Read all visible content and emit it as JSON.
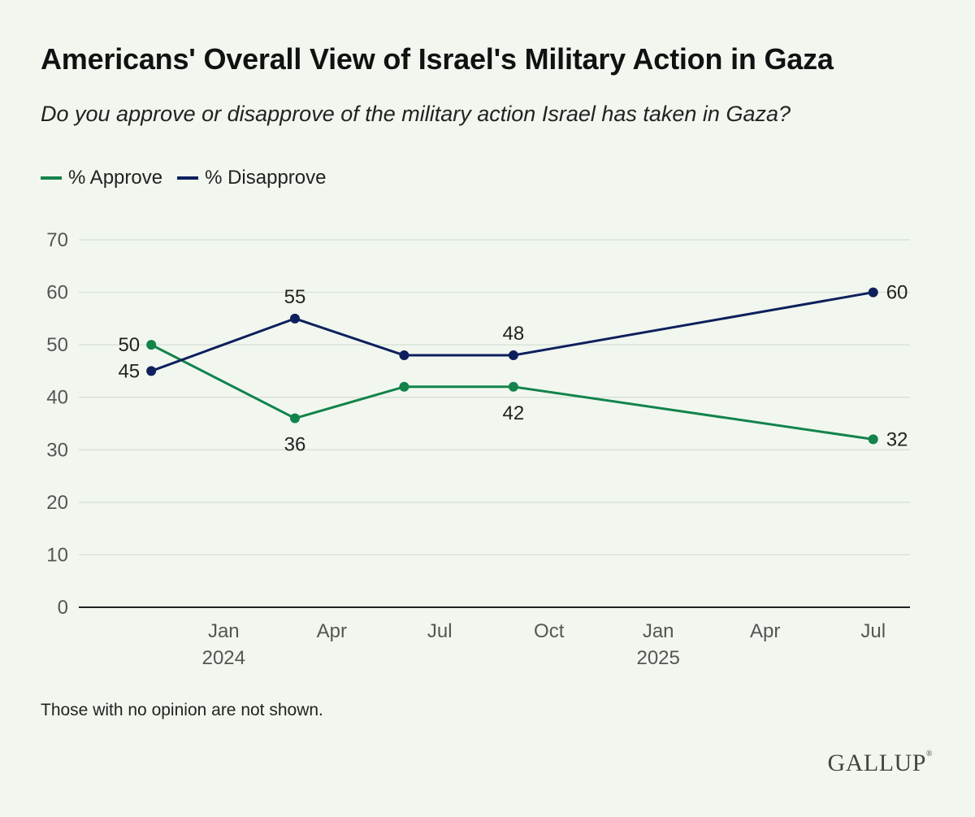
{
  "title": "Americans' Overall View of Israel's Military Action in Gaza",
  "subtitle": "Do you approve or disapprove of the military action Israel has taken in Gaza?",
  "note": "Those with no opinion are not shown.",
  "logo": "GALLUP",
  "chart_data": {
    "type": "line",
    "title": "Americans' Overall View of Israel's Military Action in Gaza",
    "subtitle": "Do you approve or disapprove of the military action Israel has taken in Gaza?",
    "xlabel": "",
    "ylabel": "",
    "ylim": [
      0,
      70
    ],
    "yticks": [
      0,
      10,
      20,
      30,
      40,
      50,
      60,
      70
    ],
    "xlim": [
      "2023-09-01",
      "2025-08-01"
    ],
    "xticks": [
      {
        "date": "2024-01-01",
        "label": "Jan",
        "year": "2024"
      },
      {
        "date": "2024-04-01",
        "label": "Apr",
        "year": ""
      },
      {
        "date": "2024-07-01",
        "label": "Jul",
        "year": ""
      },
      {
        "date": "2024-10-01",
        "label": "Oct",
        "year": ""
      },
      {
        "date": "2025-01-01",
        "label": "Jan",
        "year": "2025"
      },
      {
        "date": "2025-04-01",
        "label": "Apr",
        "year": ""
      },
      {
        "date": "2025-07-01",
        "label": "Jul",
        "year": ""
      }
    ],
    "grid": true,
    "legend_position": "top-left",
    "x": [
      "2023-11-01",
      "2024-03-01",
      "2024-06-01",
      "2024-09-01",
      "2025-07-01"
    ],
    "series": [
      {
        "name": "% Approve",
        "color": "#12834b",
        "values": [
          50,
          36,
          42,
          42,
          32
        ],
        "label_pos": [
          "left",
          "below",
          "none",
          "below",
          "right"
        ]
      },
      {
        "name": "% Disapprove",
        "color": "#0d1f5c",
        "values": [
          45,
          55,
          48,
          48,
          60
        ],
        "label_pos": [
          "left",
          "above",
          "none",
          "above",
          "right"
        ]
      }
    ]
  }
}
